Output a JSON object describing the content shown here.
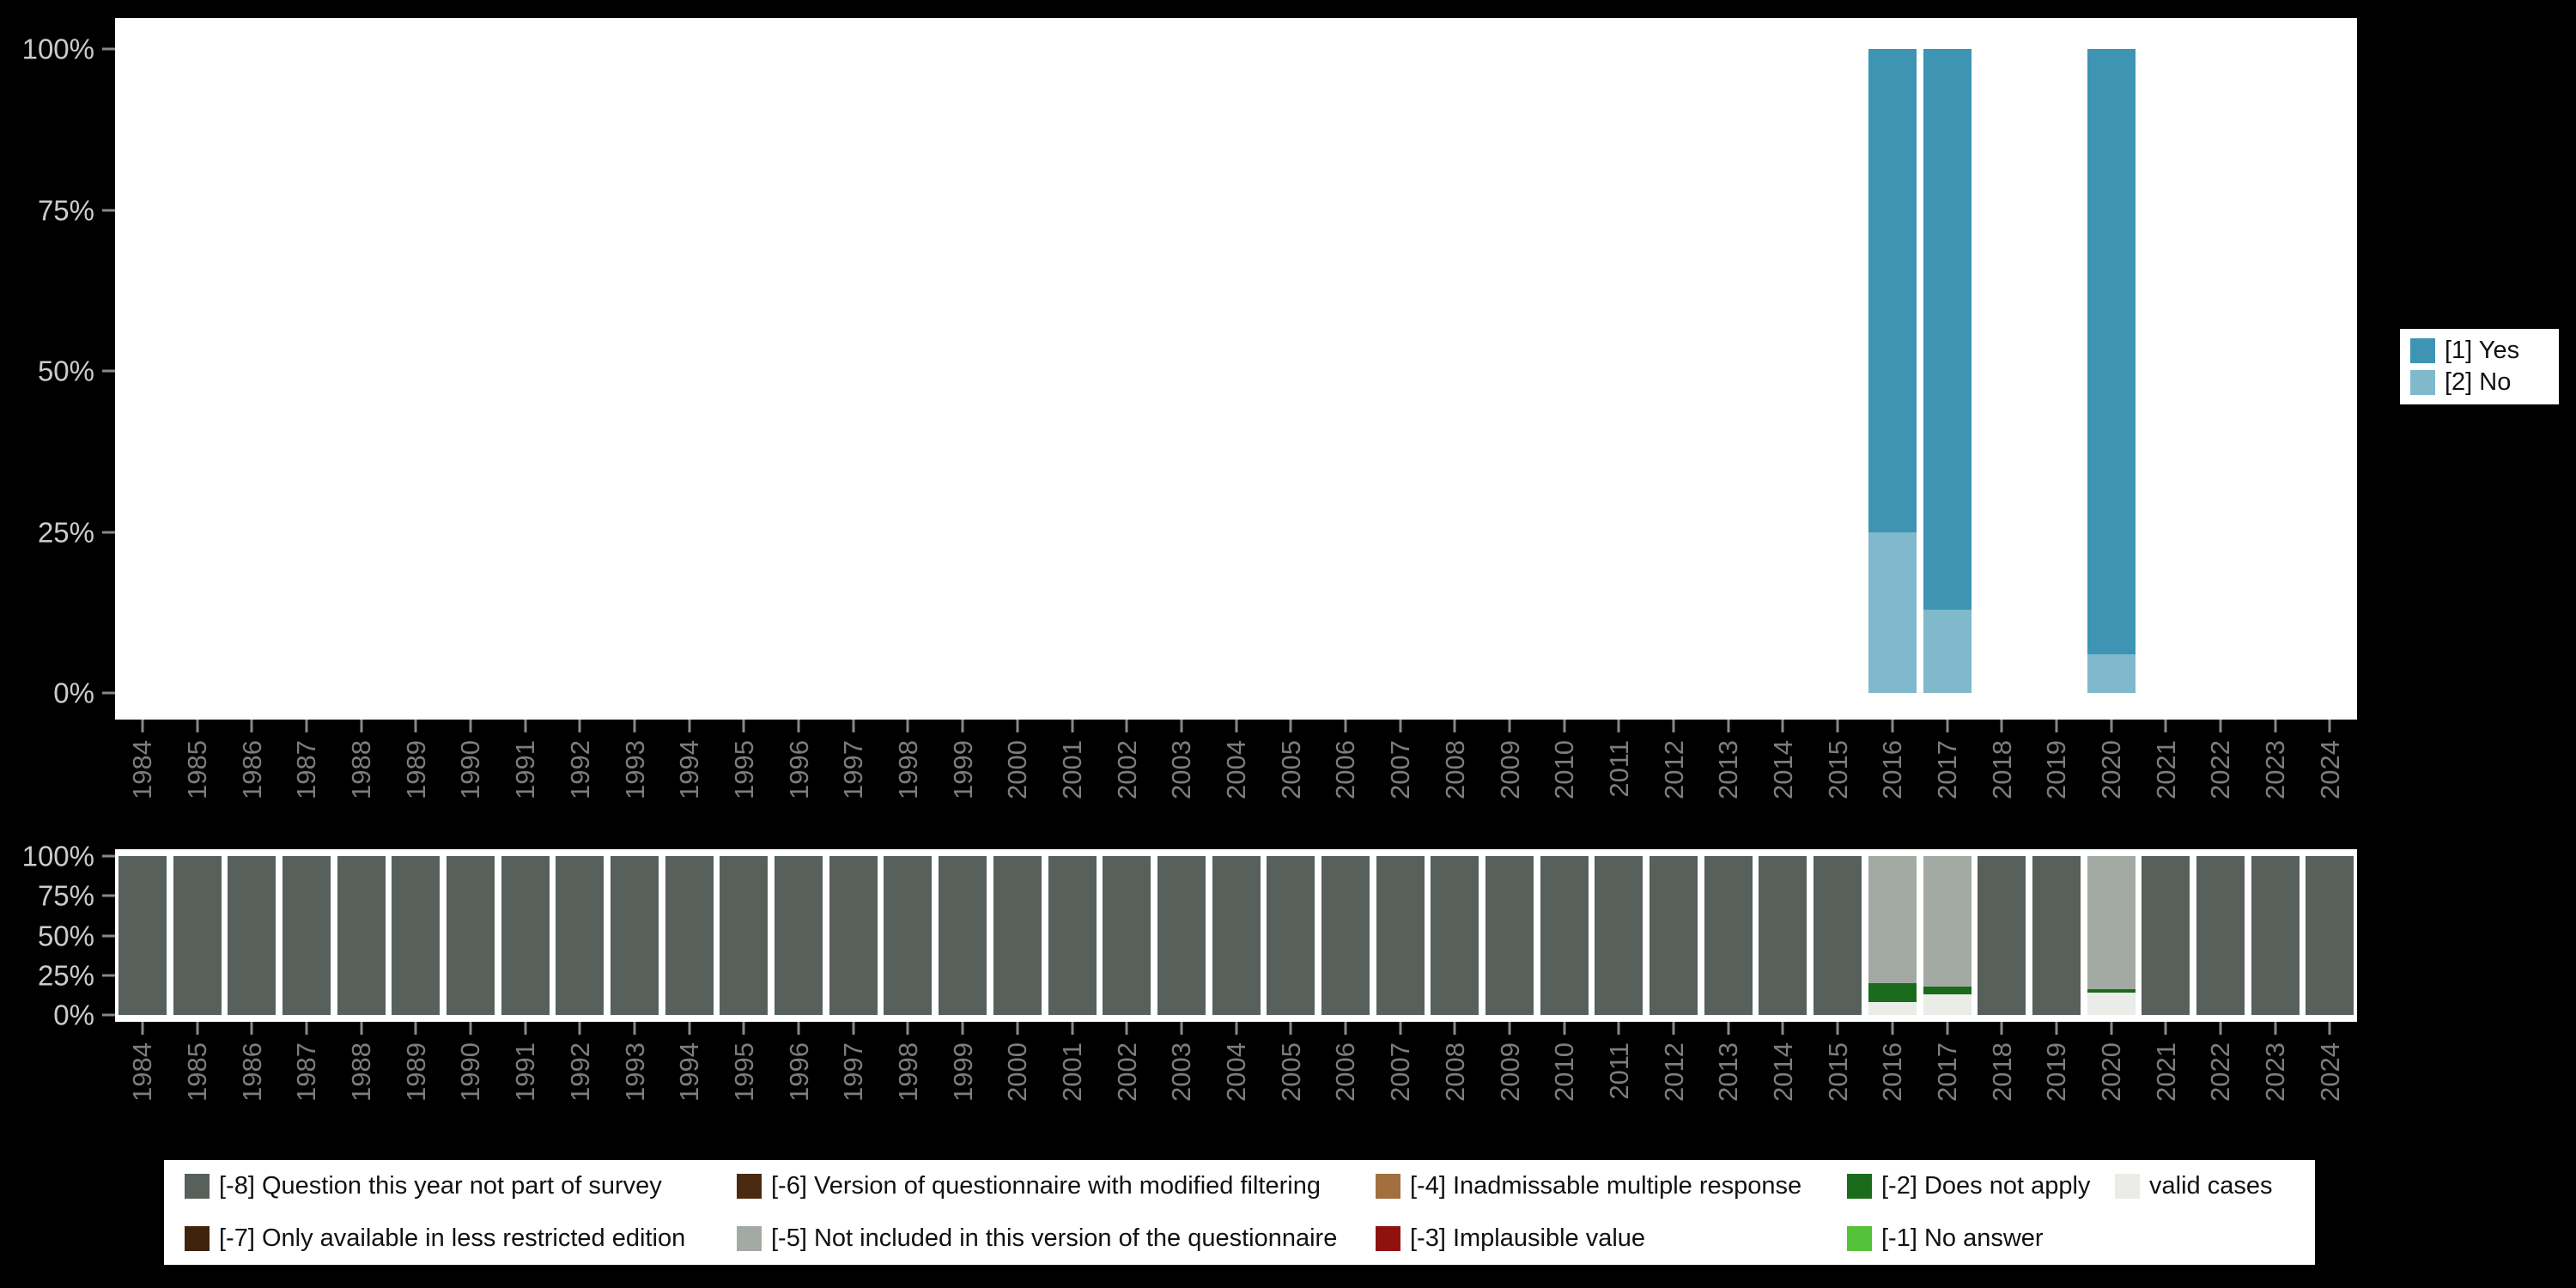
{
  "app": {
    "background_color": "#000000",
    "plot_background_color": "#ffffff"
  },
  "axes": {
    "y_label_color": "#cbcbcb",
    "x_label_color": "#7d7d7d",
    "tick_color": "#888888",
    "x_tick_rotation": 90
  },
  "chart_data": [
    {
      "id": "values-chart",
      "type": "bar",
      "stacked": true,
      "unit": "percent",
      "title": "",
      "xlabel": "",
      "ylabel": "",
      "ylim": [
        0,
        100
      ],
      "grid": false,
      "legend_position": "right",
      "y_tick_labels": [
        "100%",
        "75%",
        "50%",
        "25%",
        "0%"
      ],
      "categories": [
        "1984",
        "1985",
        "1986",
        "1987",
        "1988",
        "1989",
        "1990",
        "1991",
        "1992",
        "1993",
        "1994",
        "1995",
        "1996",
        "1997",
        "1998",
        "1999",
        "2000",
        "2001",
        "2002",
        "2003",
        "2004",
        "2005",
        "2006",
        "2007",
        "2008",
        "2009",
        "2010",
        "2011",
        "2012",
        "2013",
        "2014",
        "2015",
        "2016",
        "2017",
        "2018",
        "2019",
        "2020",
        "2021",
        "2022",
        "2023",
        "2024"
      ],
      "series": [
        {
          "name": "[1] Yes",
          "color": "#3d94b3",
          "values": [
            0,
            0,
            0,
            0,
            0,
            0,
            0,
            0,
            0,
            0,
            0,
            0,
            0,
            0,
            0,
            0,
            0,
            0,
            0,
            0,
            0,
            0,
            0,
            0,
            0,
            0,
            0,
            0,
            0,
            0,
            0,
            0,
            75,
            87,
            0,
            0,
            94,
            0,
            0,
            0,
            0
          ]
        },
        {
          "name": "[2] No",
          "color": "#7fb9cb",
          "values": [
            0,
            0,
            0,
            0,
            0,
            0,
            0,
            0,
            0,
            0,
            0,
            0,
            0,
            0,
            0,
            0,
            0,
            0,
            0,
            0,
            0,
            0,
            0,
            0,
            0,
            0,
            0,
            0,
            0,
            0,
            0,
            0,
            25,
            13,
            0,
            0,
            6,
            0,
            0,
            0,
            0
          ]
        }
      ]
    },
    {
      "id": "missings-chart",
      "type": "bar",
      "stacked": true,
      "unit": "percent",
      "title": "",
      "xlabel": "",
      "ylabel": "",
      "ylim": [
        0,
        100
      ],
      "grid": false,
      "legend_position": "bottom",
      "y_tick_labels": [
        "100%",
        "75%",
        "50%",
        "25%",
        "0%"
      ],
      "categories": [
        "1984",
        "1985",
        "1986",
        "1987",
        "1988",
        "1989",
        "1990",
        "1991",
        "1992",
        "1993",
        "1994",
        "1995",
        "1996",
        "1997",
        "1998",
        "1999",
        "2000",
        "2001",
        "2002",
        "2003",
        "2004",
        "2005",
        "2006",
        "2007",
        "2008",
        "2009",
        "2010",
        "2011",
        "2012",
        "2013",
        "2014",
        "2015",
        "2016",
        "2017",
        "2018",
        "2019",
        "2020",
        "2021",
        "2022",
        "2023",
        "2024"
      ],
      "series": [
        {
          "name": "[-8] Question this year not part of survey",
          "color": "#57605b",
          "values": [
            100,
            100,
            100,
            100,
            100,
            100,
            100,
            100,
            100,
            100,
            100,
            100,
            100,
            100,
            100,
            100,
            100,
            100,
            100,
            100,
            100,
            100,
            100,
            100,
            100,
            100,
            100,
            100,
            100,
            100,
            100,
            100,
            0,
            0,
            100,
            100,
            0,
            100,
            100,
            100,
            100
          ]
        },
        {
          "name": "[-7] Only available in less restricted edition",
          "color": "#3f230c",
          "values": [
            0,
            0,
            0,
            0,
            0,
            0,
            0,
            0,
            0,
            0,
            0,
            0,
            0,
            0,
            0,
            0,
            0,
            0,
            0,
            0,
            0,
            0,
            0,
            0,
            0,
            0,
            0,
            0,
            0,
            0,
            0,
            0,
            0,
            0,
            0,
            0,
            0,
            0,
            0,
            0,
            0
          ]
        },
        {
          "name": "[-6] Version of questionnaire with modified filtering",
          "color": "#4a2a10",
          "values": [
            0,
            0,
            0,
            0,
            0,
            0,
            0,
            0,
            0,
            0,
            0,
            0,
            0,
            0,
            0,
            0,
            0,
            0,
            0,
            0,
            0,
            0,
            0,
            0,
            0,
            0,
            0,
            0,
            0,
            0,
            0,
            0,
            0,
            0,
            0,
            0,
            0,
            0,
            0,
            0,
            0
          ]
        },
        {
          "name": "[-5] Not included in this version of the questionnaire",
          "color": "#a3aaa4",
          "values": [
            0,
            0,
            0,
            0,
            0,
            0,
            0,
            0,
            0,
            0,
            0,
            0,
            0,
            0,
            0,
            0,
            0,
            0,
            0,
            0,
            0,
            0,
            0,
            0,
            0,
            0,
            0,
            0,
            0,
            0,
            0,
            0,
            80,
            82,
            0,
            0,
            84,
            0,
            0,
            0,
            0
          ]
        },
        {
          "name": "[-4] Inadmissable multiple response",
          "color": "#a26f3f",
          "values": [
            0,
            0,
            0,
            0,
            0,
            0,
            0,
            0,
            0,
            0,
            0,
            0,
            0,
            0,
            0,
            0,
            0,
            0,
            0,
            0,
            0,
            0,
            0,
            0,
            0,
            0,
            0,
            0,
            0,
            0,
            0,
            0,
            0,
            0,
            0,
            0,
            0,
            0,
            0,
            0,
            0
          ]
        },
        {
          "name": "[-3] Implausible value",
          "color": "#8f1210",
          "values": [
            0,
            0,
            0,
            0,
            0,
            0,
            0,
            0,
            0,
            0,
            0,
            0,
            0,
            0,
            0,
            0,
            0,
            0,
            0,
            0,
            0,
            0,
            0,
            0,
            0,
            0,
            0,
            0,
            0,
            0,
            0,
            0,
            0,
            0,
            0,
            0,
            0,
            0,
            0,
            0,
            0
          ]
        },
        {
          "name": "[-2] Does not apply",
          "color": "#1a6b1c",
          "values": [
            0,
            0,
            0,
            0,
            0,
            0,
            0,
            0,
            0,
            0,
            0,
            0,
            0,
            0,
            0,
            0,
            0,
            0,
            0,
            0,
            0,
            0,
            0,
            0,
            0,
            0,
            0,
            0,
            0,
            0,
            0,
            0,
            12,
            5,
            0,
            0,
            2,
            0,
            0,
            0,
            0
          ]
        },
        {
          "name": "[-1] No answer",
          "color": "#54c23a",
          "values": [
            0,
            0,
            0,
            0,
            0,
            0,
            0,
            0,
            0,
            0,
            0,
            0,
            0,
            0,
            0,
            0,
            0,
            0,
            0,
            0,
            0,
            0,
            0,
            0,
            0,
            0,
            0,
            0,
            0,
            0,
            0,
            0,
            0,
            0,
            0,
            0,
            0,
            0,
            0,
            0,
            0
          ]
        },
        {
          "name": "valid cases",
          "color": "#e9ece7",
          "values": [
            0,
            0,
            0,
            0,
            0,
            0,
            0,
            0,
            0,
            0,
            0,
            0,
            0,
            0,
            0,
            0,
            0,
            0,
            0,
            0,
            0,
            0,
            0,
            0,
            0,
            0,
            0,
            0,
            0,
            0,
            0,
            0,
            8,
            13,
            0,
            0,
            14,
            0,
            0,
            0,
            0
          ]
        }
      ]
    }
  ]
}
